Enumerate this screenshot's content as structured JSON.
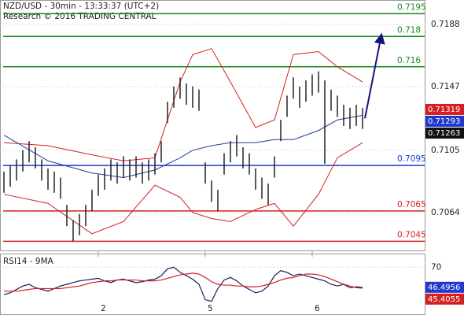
{
  "chart_data": [
    {
      "type": "range",
      "title": "NZD/USD - 30min - 13:33:37 (UTC+2)",
      "subtitle": "Research © 2016 TRADING CENTRAL",
      "categories": [
        null,
        null,
        null,
        null,
        null,
        null,
        null,
        null,
        null,
        null,
        null,
        null,
        null,
        null,
        null,
        "2",
        null,
        null,
        null,
        null,
        null,
        null,
        null,
        null,
        null,
        null,
        null,
        null,
        null,
        null,
        null,
        null,
        "5",
        null,
        null,
        null,
        null,
        null,
        null,
        null,
        null,
        null,
        null,
        null,
        null,
        null,
        null,
        null,
        null,
        "6",
        null,
        null,
        null,
        null,
        null,
        null,
        null,
        null
      ],
      "high": [
        0.7091,
        0.7095,
        0.7099,
        0.7105,
        0.7111,
        0.7107,
        0.7099,
        0.7093,
        0.7091,
        0.7087,
        0.7069,
        0.7059,
        0.7063,
        0.7069,
        0.7079,
        0.7089,
        0.7093,
        0.7099,
        0.7097,
        0.7101,
        0.7099,
        0.7101,
        0.7097,
        0.7099,
        0.7103,
        0.7111,
        0.7137,
        0.7147,
        0.7153,
        0.7149,
        0.7147,
        0.7145,
        0.7097,
        0.7085,
        0.7079,
        0.7103,
        0.7111,
        0.7115,
        0.7107,
        0.7103,
        0.7093,
        0.7087,
        0.7083,
        0.7101,
        0.7125,
        0.7141,
        0.7153,
        0.7147,
        0.7151,
        0.7155,
        0.7157,
        0.7151,
        0.7145,
        0.7141,
        0.7135,
        0.7133,
        0.7135,
        0.7133
      ],
      "low": [
        0.7077,
        0.7081,
        0.7085,
        0.7091,
        0.7097,
        0.7093,
        0.7085,
        0.7079,
        0.7077,
        0.7073,
        0.7055,
        0.7045,
        0.7049,
        0.7055,
        0.7065,
        0.7075,
        0.7079,
        0.7085,
        0.7083,
        0.7087,
        0.7085,
        0.7087,
        0.7083,
        0.7085,
        0.7089,
        0.7097,
        0.7123,
        0.7133,
        0.7139,
        0.7135,
        0.7133,
        0.7131,
        0.7083,
        0.7071,
        0.7065,
        0.7089,
        0.7097,
        0.7101,
        0.7093,
        0.7089,
        0.7079,
        0.7073,
        0.7069,
        0.7087,
        0.7111,
        0.7127,
        0.7139,
        0.7133,
        0.7137,
        0.7141,
        0.7143,
        0.7096,
        0.7131,
        0.7127,
        0.7121,
        0.7119,
        0.7121,
        0.7119
      ],
      "color": "#222222",
      "bands": {
        "x": [
          0,
          7,
          14,
          19,
          24,
          28,
          30,
          33,
          36,
          40,
          43,
          46,
          50,
          53,
          57
        ],
        "upper": [
          0.711,
          0.7108,
          0.7102,
          0.7098,
          0.71,
          0.715,
          0.7168,
          0.7172,
          0.715,
          0.712,
          0.7125,
          0.7168,
          0.717,
          0.716,
          0.715
        ],
        "middle": [
          0.7115,
          0.7098,
          0.709,
          0.7087,
          0.7092,
          0.71,
          0.7105,
          0.7108,
          0.711,
          0.711,
          0.7112,
          0.7112,
          0.7118,
          0.7125,
          0.7128
        ],
        "lower": [
          0.7076,
          0.707,
          0.705,
          0.7058,
          0.7082,
          0.7074,
          0.7064,
          0.706,
          0.7058,
          0.7066,
          0.707,
          0.7055,
          0.7076,
          0.71,
          0.711
        ],
        "band_color": "#d42020",
        "middle_color": "#1f3a9e"
      },
      "levels": [
        {
          "value": 0.7195,
          "color": "#1a8a1a"
        },
        {
          "value": 0.718,
          "color": "#1a8a1a"
        },
        {
          "value": 0.716,
          "color": "#1a8a1a"
        },
        {
          "value": 0.7095,
          "color": "#1f3acc"
        },
        {
          "value": 0.7065,
          "color": "#d42020"
        },
        {
          "value": 0.7045,
          "color": "#d42020"
        }
      ],
      "price_tags": [
        {
          "value": 0.71319,
          "color": "#d42020"
        },
        {
          "value": 0.71293,
          "color": "#1f3acc"
        },
        {
          "value": 0.71263,
          "color": "#111111"
        }
      ],
      "forecast": {
        "x": 60,
        "value": 0.7181,
        "color": "#14147a"
      },
      "ylim": [
        0.7039,
        0.7204
      ],
      "yticks": [
        0.7188,
        0.7147,
        0.7105,
        0.7064
      ]
    },
    {
      "type": "line",
      "title": "RSI14 - 9MA",
      "series": [
        {
          "color": "#1a1a5a",
          "values": [
            38,
            40,
            44,
            48,
            50,
            46,
            44,
            42,
            45,
            48,
            50,
            52,
            54,
            55,
            56,
            57,
            54,
            52,
            55,
            56,
            54,
            52,
            53,
            55,
            56,
            60,
            68,
            70,
            64,
            60,
            56,
            50,
            32,
            30,
            45,
            55,
            58,
            54,
            48,
            44,
            40,
            42,
            48,
            60,
            66,
            64,
            60,
            62,
            60,
            58,
            56,
            54,
            50,
            48,
            50,
            46,
            47,
            46.5
          ]
        },
        {
          "color": "#d42020",
          "values": [
            42,
            42,
            42,
            43,
            44,
            45,
            45,
            45,
            45,
            45,
            46,
            47,
            48,
            50,
            52,
            53,
            54,
            54,
            55,
            55,
            55,
            55,
            54,
            54,
            54,
            55,
            57,
            59,
            61,
            62,
            63,
            62,
            58,
            53,
            50,
            49,
            49,
            48,
            48,
            47,
            47,
            48,
            50,
            52,
            55,
            57,
            58,
            60,
            62,
            62,
            61,
            59,
            56,
            53,
            50,
            48,
            46,
            45.4
          ]
        }
      ],
      "tags": [
        {
          "value": 46.4956,
          "color": "#1f3acc"
        },
        {
          "value": 45.4055,
          "color": "#d42020"
        }
      ],
      "ylim": [
        15,
        85
      ],
      "yticks": [
        70
      ]
    }
  ]
}
